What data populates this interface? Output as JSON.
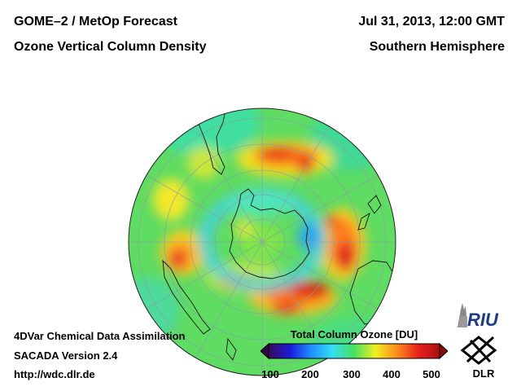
{
  "header": {
    "title_left": "GOME–2 / MetOp Forecast",
    "subtitle_left": "Ozone Vertical Column Density",
    "title_right": "Jul 31, 2013, 12:00 GMT",
    "subtitle_right": "Southern Hemisphere"
  },
  "footer": {
    "line1": "4DVar Chemical Data Assimilation",
    "line2": "SACADA Version 2.4",
    "line3": "http://wdc.dlr.de"
  },
  "colorbar": {
    "title": "Total Column Ozone [DU]",
    "ticks": [
      "100",
      "200",
      "300",
      "400",
      "500"
    ],
    "min": 100,
    "max": 500,
    "colors": [
      "#3a0a5a",
      "#1b1bd8",
      "#1e90ff",
      "#33e0f0",
      "#48e060",
      "#f0f020",
      "#ff8c1a",
      "#e8201a",
      "#a81010"
    ]
  },
  "logos": {
    "riu": "RIU",
    "dlr": "DLR"
  }
}
